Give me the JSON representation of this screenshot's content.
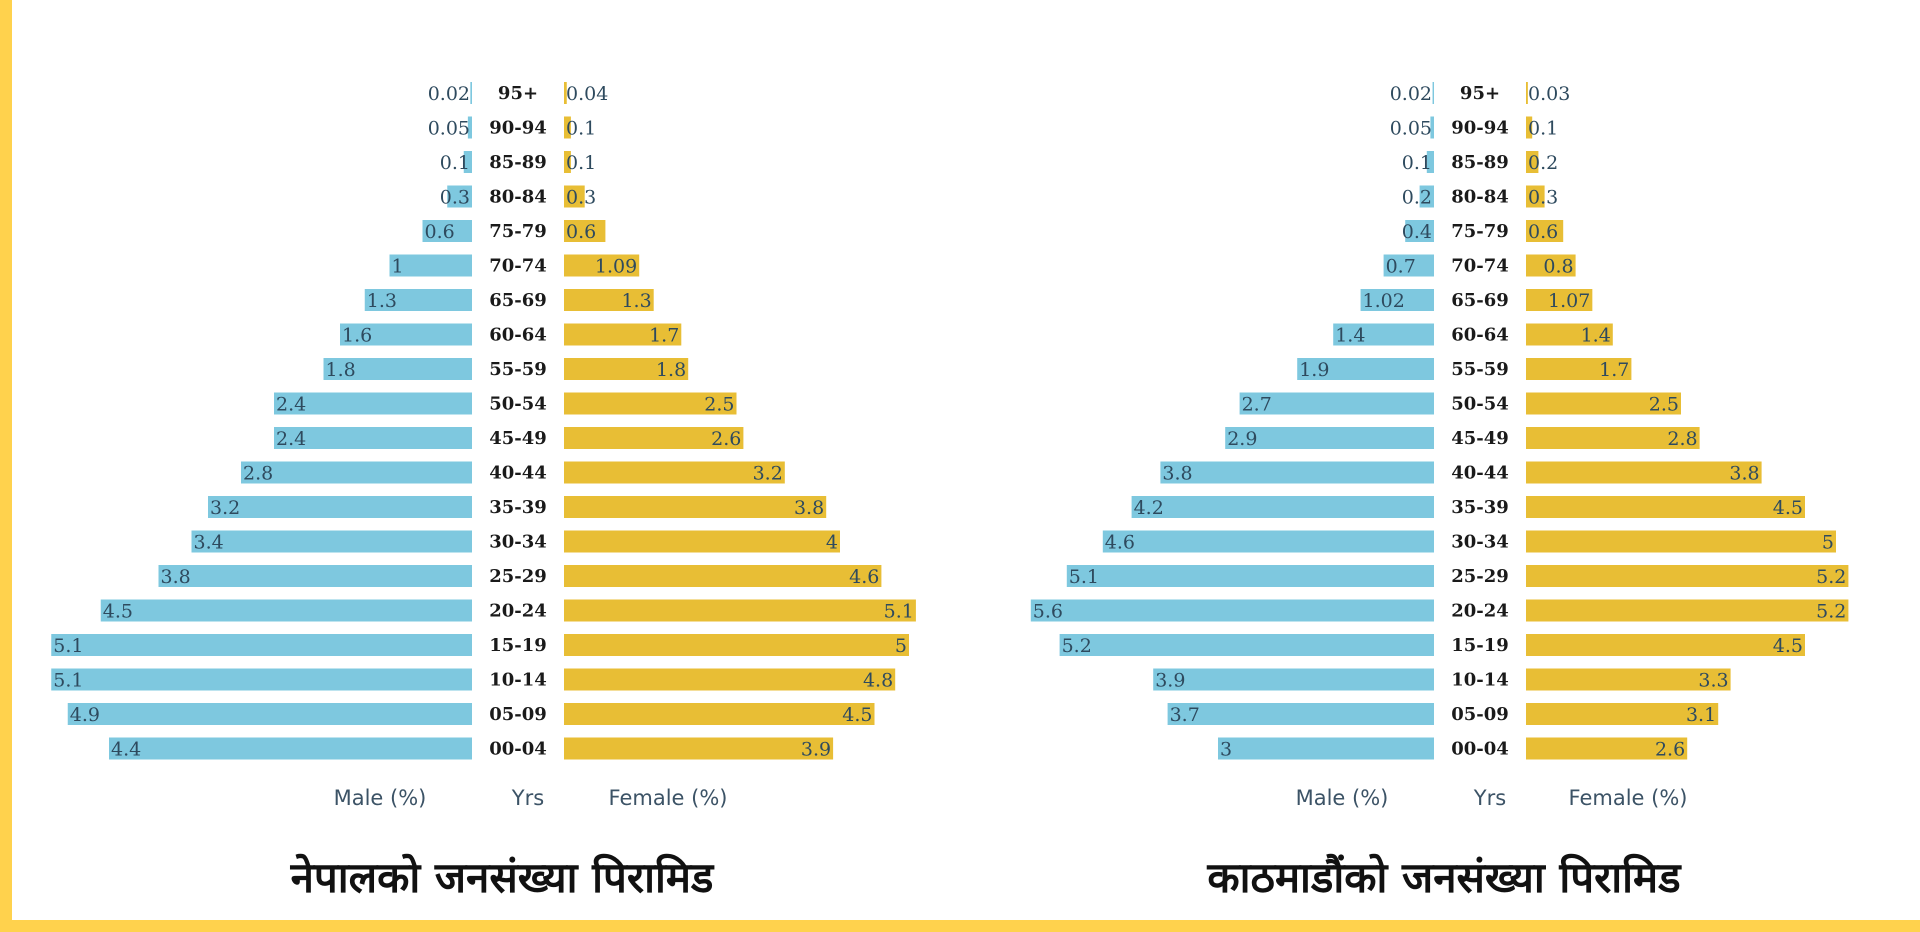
{
  "colors": {
    "male": "#7ec8df",
    "female": "#e8be35",
    "frame": "#ffd24d"
  },
  "chart_data": [
    {
      "type": "bar",
      "orientation": "horizontal-pyramid",
      "title": "नेपालको जनसंख्या पिरामिड",
      "xlabel_left": "Male (%)",
      "xlabel_center": "Yrs",
      "xlabel_right": "Female (%)",
      "categories": [
        "95+",
        "90-94",
        "85-89",
        "80-84",
        "75-79",
        "70-74",
        "65-69",
        "60-64",
        "55-59",
        "50-54",
        "45-49",
        "40-44",
        "35-39",
        "30-34",
        "25-29",
        "20-24",
        "15-19",
        "10-14",
        "05-09",
        "00-04"
      ],
      "series": [
        {
          "name": "Male (%)",
          "values": [
            0.02,
            0.05,
            0.1,
            0.3,
            0.6,
            1,
            1.3,
            1.6,
            1.8,
            2.4,
            2.4,
            2.8,
            3.2,
            3.4,
            3.8,
            4.5,
            5.1,
            5.1,
            4.9,
            4.4
          ]
        },
        {
          "name": "Female (%)",
          "values": [
            0.04,
            0.1,
            0.1,
            0.3,
            0.6,
            1.09,
            1.3,
            1.7,
            1.8,
            2.5,
            2.6,
            3.2,
            3.8,
            4,
            4.6,
            5.1,
            5,
            4.8,
            4.5,
            3.9
          ]
        }
      ],
      "xlim": [
        0,
        5.1
      ]
    },
    {
      "type": "bar",
      "orientation": "horizontal-pyramid",
      "title": "काठमाडौंको जनसंख्या पिरामिड",
      "xlabel_left": "Male (%)",
      "xlabel_center": "Yrs",
      "xlabel_right": "Female (%)",
      "categories": [
        "95+",
        "90-94",
        "85-89",
        "80-84",
        "75-79",
        "70-74",
        "65-69",
        "60-64",
        "55-59",
        "50-54",
        "45-49",
        "40-44",
        "35-39",
        "30-34",
        "25-29",
        "20-24",
        "15-19",
        "10-14",
        "05-09",
        "00-04"
      ],
      "series": [
        {
          "name": "Male (%)",
          "values": [
            0.02,
            0.05,
            0.1,
            0.2,
            0.4,
            0.7,
            1.02,
            1.4,
            1.9,
            2.7,
            2.9,
            3.8,
            4.2,
            4.6,
            5.1,
            5.6,
            5.2,
            3.9,
            3.7,
            3
          ]
        },
        {
          "name": "Female (%)",
          "values": [
            0.03,
            0.1,
            0.2,
            0.3,
            0.6,
            0.8,
            1.07,
            1.4,
            1.7,
            2.5,
            2.8,
            3.8,
            4.5,
            5,
            5.2,
            5.2,
            4.5,
            3.3,
            3.1,
            2.6
          ]
        }
      ],
      "xlim": [
        0,
        5.6
      ]
    }
  ]
}
